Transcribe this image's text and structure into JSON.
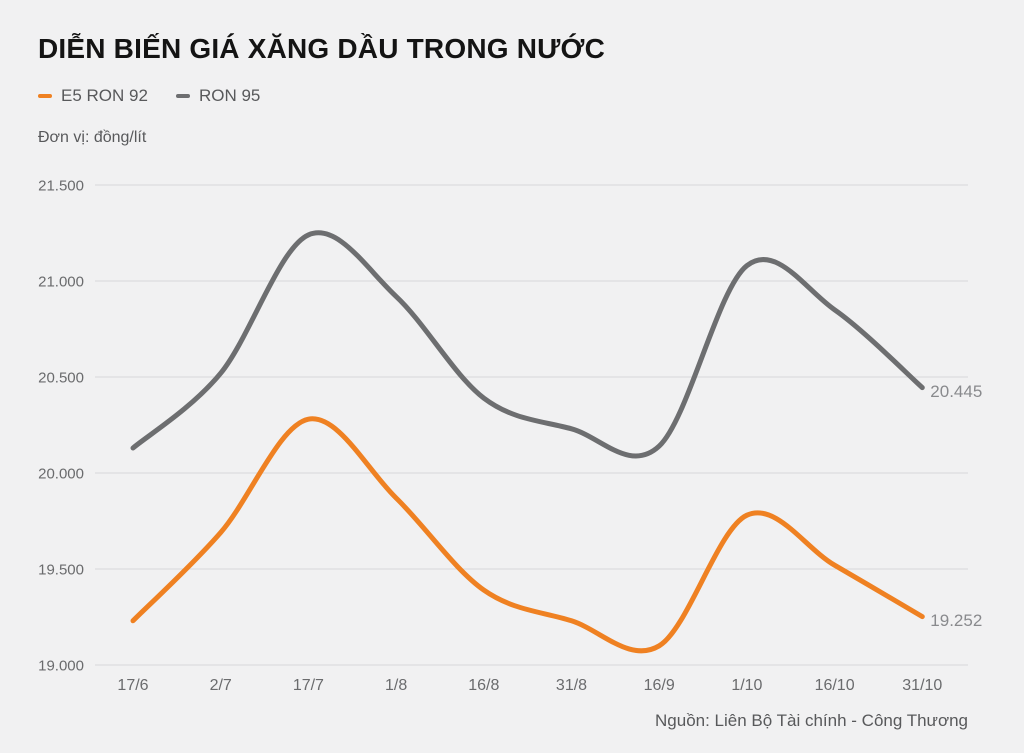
{
  "title": "DIỄN BIẾN GIÁ XĂNG DẦU TRONG NƯỚC",
  "unit_label": "Đơn vị: đồng/lít",
  "source": "Nguồn: Liên Bộ Tài chính - Công Thương",
  "colors": {
    "background": "#f1f1f2",
    "title": "#141414",
    "text_gray": "#58595b",
    "tick_gray": "#6a6b6d",
    "gridline": "#d8d8d9",
    "end_label": "#898a8d",
    "e5_orange": "#ef8122",
    "ron95_gray": "#6d6e70"
  },
  "chart_data": {
    "type": "line",
    "title": "DIỄN BIẾN GIÁ XĂNG DẦU TRONG NƯỚC",
    "ylabel": "đồng/lít",
    "xlabel": "",
    "categories": [
      "17/6",
      "2/7",
      "17/7",
      "1/8",
      "16/8",
      "31/8",
      "16/9",
      "1/10",
      "16/10",
      "31/10"
    ],
    "series": [
      {
        "name": "E5 RON 92",
        "color": "#ef8122",
        "values": [
          19230,
          19690,
          20280,
          19870,
          19390,
          19230,
          19100,
          19780,
          19520,
          19252
        ],
        "end_label": "19.252"
      },
      {
        "name": "RON 95",
        "color": "#6d6e70",
        "values": [
          20130,
          20520,
          21240,
          20920,
          20390,
          20230,
          20140,
          21080,
          20850,
          20445
        ],
        "end_label": "20.445"
      }
    ],
    "yticks": [
      "19.000",
      "19.500",
      "20.000",
      "20.500",
      "21.000",
      "21.500"
    ],
    "ylim": [
      19000,
      21500
    ],
    "grid": true,
    "legend_position": "top-left",
    "curve": "smooth-spline"
  }
}
